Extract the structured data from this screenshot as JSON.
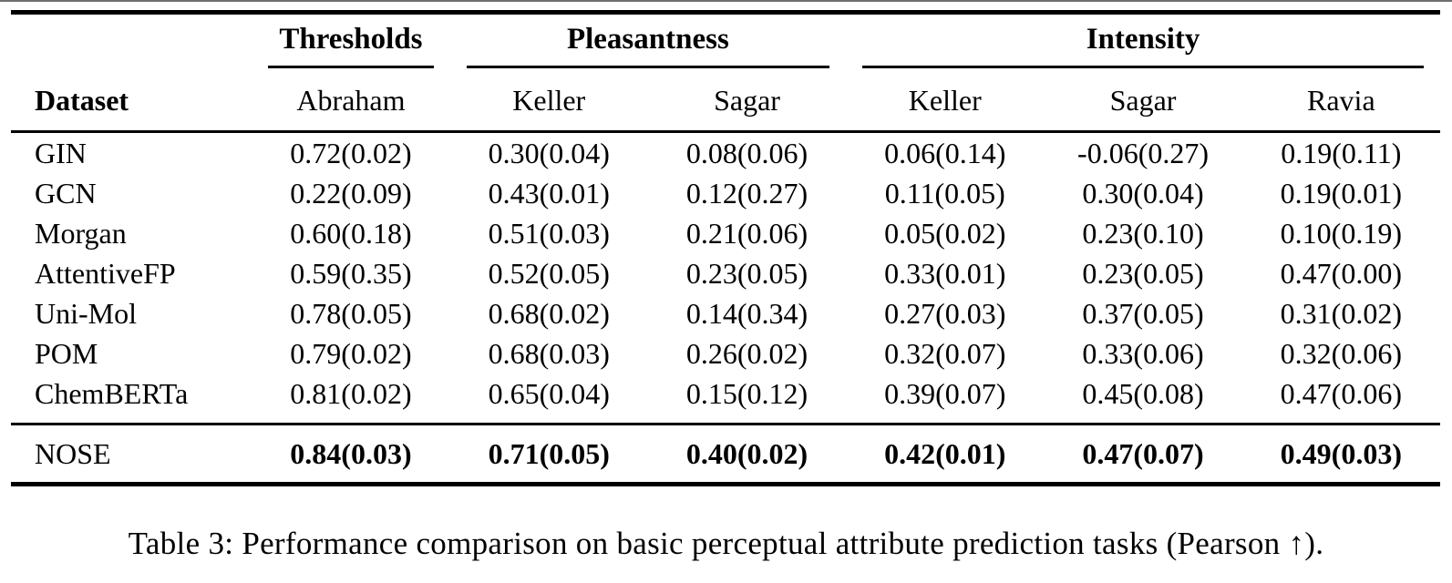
{
  "colors": {
    "text": "#000000",
    "background": "#ffffff",
    "rule": "#000000",
    "top_edge": "#6f6f6f"
  },
  "table": {
    "group_headers": [
      {
        "label": "Thresholds",
        "span": 1
      },
      {
        "label": "Pleasantness",
        "span": 2
      },
      {
        "label": "Intensity",
        "span": 3
      }
    ],
    "col_headers": {
      "dataset": "Dataset",
      "c1": "Abraham",
      "c2": "Keller",
      "c3": "Sagar",
      "c4": "Keller",
      "c5": "Sagar",
      "c6": "Ravia"
    },
    "rows": [
      {
        "name": "GIN",
        "values": [
          "0.72(0.02)",
          "0.30(0.04)",
          "0.08(0.06)",
          "0.06(0.14)",
          "-0.06(0.27)",
          "0.19(0.11)"
        ]
      },
      {
        "name": "GCN",
        "values": [
          "0.22(0.09)",
          "0.43(0.01)",
          "0.12(0.27)",
          "0.11(0.05)",
          "0.30(0.04)",
          "0.19(0.01)"
        ]
      },
      {
        "name": "Morgan",
        "values": [
          "0.60(0.18)",
          "0.51(0.03)",
          "0.21(0.06)",
          "0.05(0.02)",
          "0.23(0.10)",
          "0.10(0.19)"
        ]
      },
      {
        "name": "AttentiveFP",
        "values": [
          "0.59(0.35)",
          "0.52(0.05)",
          "0.23(0.05)",
          "0.33(0.01)",
          "0.23(0.05)",
          "0.47(0.00)"
        ]
      },
      {
        "name": "Uni-Mol",
        "values": [
          "0.78(0.05)",
          "0.68(0.02)",
          "0.14(0.34)",
          "0.27(0.03)",
          "0.37(0.05)",
          "0.31(0.02)"
        ]
      },
      {
        "name": "POM",
        "values": [
          "0.79(0.02)",
          "0.68(0.03)",
          "0.26(0.02)",
          "0.32(0.07)",
          "0.33(0.06)",
          "0.32(0.06)"
        ]
      },
      {
        "name": "ChemBERTa",
        "values": [
          "0.81(0.02)",
          "0.65(0.04)",
          "0.15(0.12)",
          "0.39(0.07)",
          "0.45(0.08)",
          "0.47(0.06)"
        ]
      }
    ],
    "highlight_row": {
      "name": "NOSE",
      "values": [
        "0.84(0.03)",
        "0.71(0.05)",
        "0.40(0.02)",
        "0.42(0.01)",
        "0.47(0.07)",
        "0.49(0.03)"
      ]
    }
  },
  "caption": "Table 3: Performance comparison on basic perceptual attribute prediction tasks (Pearson ↑)."
}
